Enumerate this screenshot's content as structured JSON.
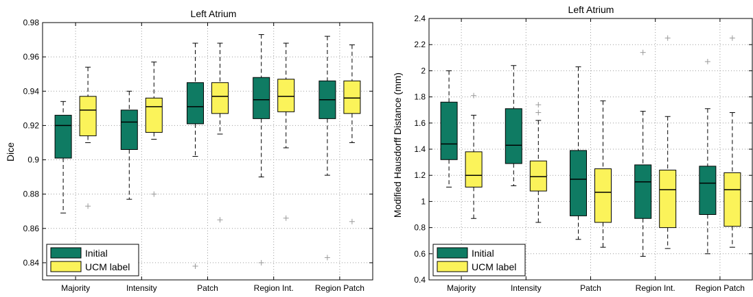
{
  "colors": {
    "initial": "#0f7b63",
    "ucm": "#fbf35a"
  },
  "chart_data": [
    {
      "type": "box",
      "title": "Left Atrium",
      "ylabel": "Dice",
      "xlabel": "",
      "ylim": [
        0.83,
        0.98
      ],
      "yticks": [
        0.84,
        0.86,
        0.88,
        0.9,
        0.92,
        0.94,
        0.96,
        0.98
      ],
      "ytick_labels": [
        "0.84",
        "0.86",
        "0.88",
        "0.9",
        "0.92",
        "0.94",
        "0.96",
        "0.98"
      ],
      "categories": [
        "Majority",
        "Intensity",
        "Patch",
        "Region Int.",
        "Region Patch"
      ],
      "legend": {
        "position": "bottom-left",
        "entries": [
          "Initial",
          "UCM label"
        ]
      },
      "grid": true,
      "series": [
        {
          "name": "Initial",
          "color_key": "initial",
          "boxes": [
            {
              "min": 0.869,
              "q1": 0.901,
              "median": 0.92,
              "q3": 0.926,
              "max": 0.934,
              "outliers": []
            },
            {
              "min": 0.877,
              "q1": 0.906,
              "median": 0.922,
              "q3": 0.929,
              "max": 0.94,
              "outliers": []
            },
            {
              "min": 0.902,
              "q1": 0.921,
              "median": 0.931,
              "q3": 0.945,
              "max": 0.968,
              "outliers": [
                0.838
              ]
            },
            {
              "min": 0.89,
              "q1": 0.924,
              "median": 0.935,
              "q3": 0.948,
              "max": 0.973,
              "outliers": [
                0.84
              ]
            },
            {
              "min": 0.891,
              "q1": 0.924,
              "median": 0.935,
              "q3": 0.946,
              "max": 0.972,
              "outliers": [
                0.843
              ]
            }
          ]
        },
        {
          "name": "UCM label",
          "color_key": "ucm",
          "boxes": [
            {
              "min": 0.91,
              "q1": 0.914,
              "median": 0.929,
              "q3": 0.937,
              "max": 0.954,
              "outliers": [
                0.873
              ]
            },
            {
              "min": 0.912,
              "q1": 0.916,
              "median": 0.931,
              "q3": 0.936,
              "max": 0.957,
              "outliers": [
                0.88
              ]
            },
            {
              "min": 0.915,
              "q1": 0.927,
              "median": 0.937,
              "q3": 0.945,
              "max": 0.968,
              "outliers": [
                0.865
              ]
            },
            {
              "min": 0.907,
              "q1": 0.928,
              "median": 0.937,
              "q3": 0.947,
              "max": 0.968,
              "outliers": [
                0.866
              ]
            },
            {
              "min": 0.91,
              "q1": 0.927,
              "median": 0.936,
              "q3": 0.946,
              "max": 0.967,
              "outliers": [
                0.864
              ]
            }
          ]
        }
      ]
    },
    {
      "type": "box",
      "title": "Left Atrium",
      "ylabel": "Modified Hausdorff Distance (mm)",
      "xlabel": "",
      "ylim": [
        0.4,
        2.4
      ],
      "yticks": [
        0.4,
        0.6,
        0.8,
        1.0,
        1.2,
        1.4,
        1.6,
        1.8,
        2.0,
        2.2,
        2.4
      ],
      "ytick_labels": [
        "0.4",
        "0.6",
        "0.8",
        "1",
        "1.2",
        "1.4",
        "1.6",
        "1.8",
        "2",
        "2.2",
        "2.4"
      ],
      "categories": [
        "Majority",
        "Intensity",
        "Patch",
        "Region Int.",
        "Region Patch"
      ],
      "legend": {
        "position": "bottom-left",
        "entries": [
          "Initial",
          "UCM label"
        ]
      },
      "grid": true,
      "series": [
        {
          "name": "Initial",
          "color_key": "initial",
          "boxes": [
            {
              "min": 1.11,
              "q1": 1.32,
              "median": 1.44,
              "q3": 1.76,
              "max": 2.0,
              "outliers": []
            },
            {
              "min": 1.12,
              "q1": 1.29,
              "median": 1.43,
              "q3": 1.71,
              "max": 2.04,
              "outliers": []
            },
            {
              "min": 0.71,
              "q1": 0.89,
              "median": 1.17,
              "q3": 1.39,
              "max": 2.03,
              "outliers": []
            },
            {
              "min": 0.58,
              "q1": 0.87,
              "median": 1.15,
              "q3": 1.28,
              "max": 1.69,
              "outliers": [
                2.14
              ]
            },
            {
              "min": 0.6,
              "q1": 0.9,
              "median": 1.14,
              "q3": 1.27,
              "max": 1.71,
              "outliers": [
                2.07
              ]
            }
          ]
        },
        {
          "name": "UCM label",
          "color_key": "ucm",
          "boxes": [
            {
              "min": 0.87,
              "q1": 1.11,
              "median": 1.2,
              "q3": 1.38,
              "max": 1.66,
              "outliers": [
                1.81
              ]
            },
            {
              "min": 0.84,
              "q1": 1.08,
              "median": 1.19,
              "q3": 1.31,
              "max": 1.62,
              "outliers": [
                1.68,
                1.74
              ]
            },
            {
              "min": 0.65,
              "q1": 0.84,
              "median": 1.07,
              "q3": 1.25,
              "max": 1.77,
              "outliers": []
            },
            {
              "min": 0.64,
              "q1": 0.8,
              "median": 1.09,
              "q3": 1.24,
              "max": 1.65,
              "outliers": [
                2.25
              ]
            },
            {
              "min": 0.65,
              "q1": 0.81,
              "median": 1.09,
              "q3": 1.22,
              "max": 1.68,
              "outliers": [
                2.25
              ]
            }
          ]
        }
      ]
    }
  ]
}
